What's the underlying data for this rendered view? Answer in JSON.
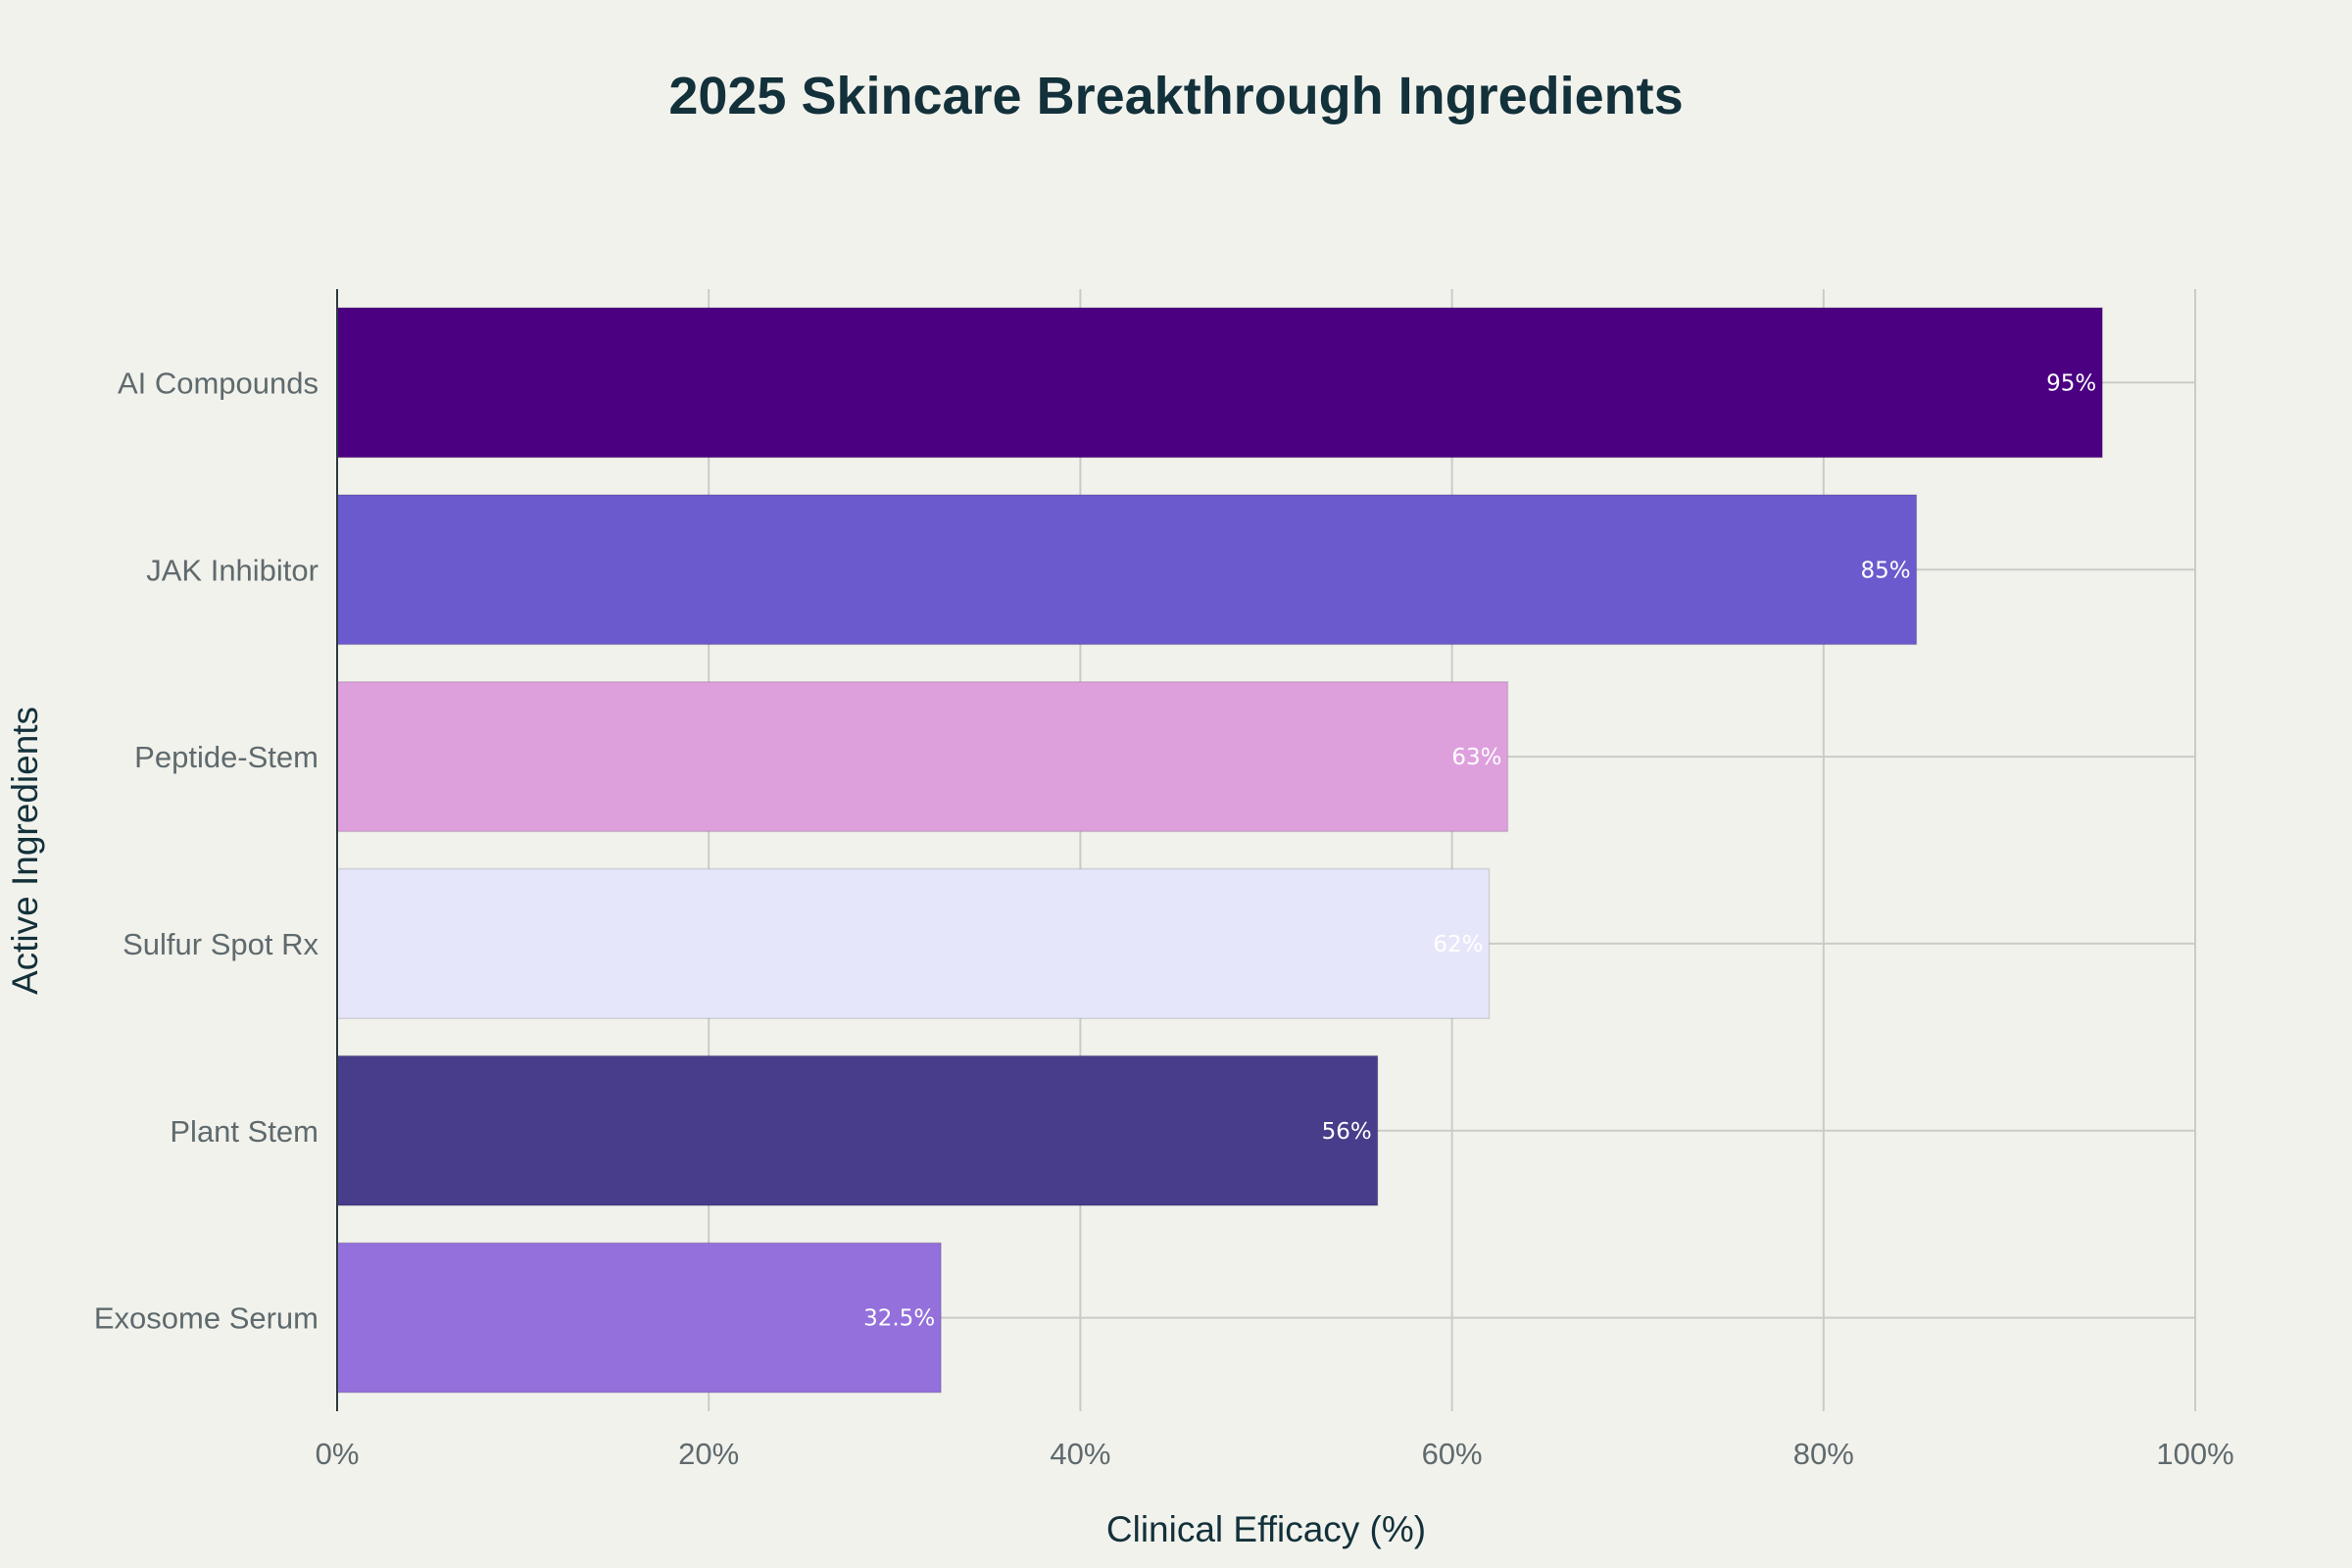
{
  "chart_data": {
    "type": "bar",
    "orientation": "horizontal",
    "title": "2025 Skincare Breakthrough Ingredients",
    "xlabel": "Clinical Efficacy (%)",
    "ylabel": "Active Ingredients",
    "xlim": [
      0,
      100
    ],
    "xticks": [
      "0%",
      "20%",
      "40%",
      "60%",
      "80%",
      "100%"
    ],
    "grid": true,
    "categories": [
      "AI Compounds",
      "JAK Inhibitor",
      "Peptide-Stem",
      "Sulfur Spot Rx",
      "Plant Stem",
      "Exosome Serum"
    ],
    "values": [
      95,
      85,
      63,
      62,
      56,
      32.5
    ],
    "value_labels": [
      "95%",
      "85%",
      "63%",
      "62%",
      "56%",
      "32.5%"
    ],
    "colors": [
      "#4b0082",
      "#6a5acd",
      "#dda0dd",
      "#e6e6fa",
      "#483d8b",
      "#9370db"
    ]
  }
}
